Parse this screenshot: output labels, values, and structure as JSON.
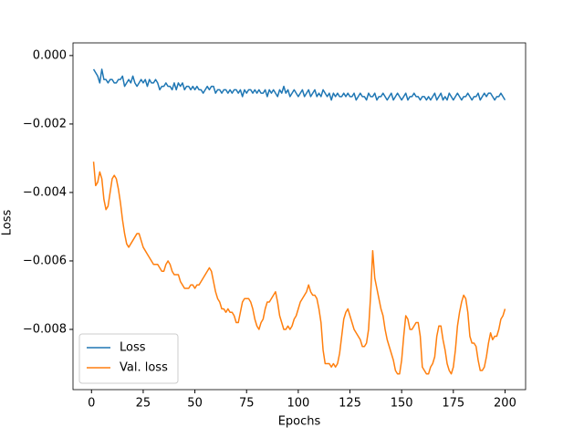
{
  "chart_data": {
    "type": "line",
    "xlabel": "Epochs",
    "ylabel": "Loss",
    "x": [
      1,
      2,
      3,
      4,
      5,
      6,
      7,
      8,
      9,
      10,
      11,
      12,
      13,
      14,
      15,
      16,
      17,
      18,
      19,
      20,
      21,
      22,
      23,
      24,
      25,
      26,
      27,
      28,
      29,
      30,
      31,
      32,
      33,
      34,
      35,
      36,
      37,
      38,
      39,
      40,
      41,
      42,
      43,
      44,
      45,
      46,
      47,
      48,
      49,
      50,
      51,
      52,
      53,
      54,
      55,
      56,
      57,
      58,
      59,
      60,
      61,
      62,
      63,
      64,
      65,
      66,
      67,
      68,
      69,
      70,
      71,
      72,
      73,
      74,
      75,
      76,
      77,
      78,
      79,
      80,
      81,
      82,
      83,
      84,
      85,
      86,
      87,
      88,
      89,
      90,
      91,
      92,
      93,
      94,
      95,
      96,
      97,
      98,
      99,
      100,
      101,
      102,
      103,
      104,
      105,
      106,
      107,
      108,
      109,
      110,
      111,
      112,
      113,
      114,
      115,
      116,
      117,
      118,
      119,
      120,
      121,
      122,
      123,
      124,
      125,
      126,
      127,
      128,
      129,
      130,
      131,
      132,
      133,
      134,
      135,
      136,
      137,
      138,
      139,
      140,
      141,
      142,
      143,
      144,
      145,
      146,
      147,
      148,
      149,
      150,
      151,
      152,
      153,
      154,
      155,
      156,
      157,
      158,
      159,
      160,
      161,
      162,
      163,
      164,
      165,
      166,
      167,
      168,
      169,
      170,
      171,
      172,
      173,
      174,
      175,
      176,
      177,
      178,
      179,
      180,
      181,
      182,
      183,
      184,
      185,
      186,
      187,
      188,
      189,
      190,
      191,
      192,
      193,
      194,
      195,
      196,
      197,
      198,
      199,
      200
    ],
    "series": [
      {
        "name": "Loss",
        "color": "#1f77b4",
        "values": [
          -0.0004,
          -0.0005,
          -0.0006,
          -0.0008,
          -0.0004,
          -0.0007,
          -0.0007,
          -0.0008,
          -0.0007,
          -0.0007,
          -0.0008,
          -0.0008,
          -0.0007,
          -0.0007,
          -0.0006,
          -0.0009,
          -0.0008,
          -0.0007,
          -0.0008,
          -0.0006,
          -0.0008,
          -0.0009,
          -0.0008,
          -0.0007,
          -0.0008,
          -0.0007,
          -0.0009,
          -0.0007,
          -0.0008,
          -0.0008,
          -0.0007,
          -0.0008,
          -0.001,
          -0.0009,
          -0.0009,
          -0.0008,
          -0.0009,
          -0.0009,
          -0.001,
          -0.0008,
          -0.001,
          -0.0008,
          -0.0009,
          -0.0008,
          -0.001,
          -0.0009,
          -0.0009,
          -0.001,
          -0.0009,
          -0.001,
          -0.0009,
          -0.001,
          -0.001,
          -0.0011,
          -0.001,
          -0.0009,
          -0.001,
          -0.0009,
          -0.0009,
          -0.0011,
          -0.001,
          -0.001,
          -0.0011,
          -0.001,
          -0.001,
          -0.0011,
          -0.001,
          -0.0011,
          -0.001,
          -0.001,
          -0.0011,
          -0.001,
          -0.0012,
          -0.001,
          -0.0011,
          -0.001,
          -0.001,
          -0.0011,
          -0.001,
          -0.0011,
          -0.001,
          -0.0011,
          -0.0011,
          -0.001,
          -0.0012,
          -0.001,
          -0.0011,
          -0.001,
          -0.0011,
          -0.0012,
          -0.001,
          -0.0011,
          -0.0009,
          -0.0011,
          -0.001,
          -0.0012,
          -0.0011,
          -0.001,
          -0.0011,
          -0.0012,
          -0.0011,
          -0.001,
          -0.0012,
          -0.0011,
          -0.001,
          -0.0012,
          -0.0011,
          -0.001,
          -0.0012,
          -0.0011,
          -0.0012,
          -0.001,
          -0.0011,
          -0.0012,
          -0.0011,
          -0.0013,
          -0.0011,
          -0.0012,
          -0.0011,
          -0.0012,
          -0.0012,
          -0.0011,
          -0.0012,
          -0.0011,
          -0.0012,
          -0.0012,
          -0.0011,
          -0.0013,
          -0.0012,
          -0.0011,
          -0.0012,
          -0.0012,
          -0.0013,
          -0.0011,
          -0.0012,
          -0.0012,
          -0.0011,
          -0.0013,
          -0.0012,
          -0.0012,
          -0.0011,
          -0.0012,
          -0.0013,
          -0.0012,
          -0.0011,
          -0.0013,
          -0.0012,
          -0.0011,
          -0.0012,
          -0.0013,
          -0.0012,
          -0.0011,
          -0.0013,
          -0.0012,
          -0.0012,
          -0.0011,
          -0.0012,
          -0.0012,
          -0.0013,
          -0.0012,
          -0.0012,
          -0.0013,
          -0.0012,
          -0.0013,
          -0.0012,
          -0.0011,
          -0.0013,
          -0.0012,
          -0.0011,
          -0.0013,
          -0.0012,
          -0.0013,
          -0.0011,
          -0.0012,
          -0.0013,
          -0.0012,
          -0.0011,
          -0.0012,
          -0.0013,
          -0.0012,
          -0.0012,
          -0.0011,
          -0.0012,
          -0.0013,
          -0.0012,
          -0.0012,
          -0.0011,
          -0.0013,
          -0.0012,
          -0.0011,
          -0.0012,
          -0.0011,
          -0.0011,
          -0.0012,
          -0.0013,
          -0.0012,
          -0.0012,
          -0.0011,
          -0.0012,
          -0.0013
        ]
      },
      {
        "name": "Val. loss",
        "color": "#ff7f0e",
        "values": [
          -0.0031,
          -0.0038,
          -0.0037,
          -0.0034,
          -0.0036,
          -0.0042,
          -0.0045,
          -0.0044,
          -0.004,
          -0.0036,
          -0.0035,
          -0.0036,
          -0.0039,
          -0.0043,
          -0.0048,
          -0.0052,
          -0.0055,
          -0.0056,
          -0.0055,
          -0.0054,
          -0.0053,
          -0.0052,
          -0.0052,
          -0.0054,
          -0.0056,
          -0.0057,
          -0.0058,
          -0.0059,
          -0.006,
          -0.0061,
          -0.0061,
          -0.0061,
          -0.0062,
          -0.0063,
          -0.0063,
          -0.0061,
          -0.006,
          -0.0061,
          -0.0063,
          -0.0064,
          -0.0064,
          -0.0064,
          -0.0066,
          -0.0067,
          -0.0068,
          -0.0068,
          -0.0068,
          -0.0067,
          -0.0067,
          -0.0068,
          -0.0067,
          -0.0067,
          -0.0066,
          -0.0065,
          -0.0064,
          -0.0063,
          -0.0062,
          -0.0063,
          -0.0066,
          -0.0069,
          -0.0071,
          -0.0072,
          -0.0074,
          -0.0074,
          -0.0075,
          -0.0074,
          -0.0075,
          -0.0075,
          -0.0076,
          -0.0078,
          -0.0078,
          -0.0075,
          -0.0072,
          -0.0071,
          -0.0071,
          -0.0071,
          -0.0072,
          -0.0074,
          -0.0077,
          -0.0079,
          -0.008,
          -0.0078,
          -0.0077,
          -0.0074,
          -0.0072,
          -0.0072,
          -0.0071,
          -0.007,
          -0.0069,
          -0.0072,
          -0.0076,
          -0.0078,
          -0.008,
          -0.008,
          -0.0079,
          -0.008,
          -0.0079,
          -0.0077,
          -0.0076,
          -0.0074,
          -0.0072,
          -0.0071,
          -0.007,
          -0.0069,
          -0.0067,
          -0.0069,
          -0.007,
          -0.007,
          -0.0071,
          -0.0074,
          -0.0078,
          -0.0086,
          -0.009,
          -0.009,
          -0.009,
          -0.0091,
          -0.009,
          -0.0091,
          -0.009,
          -0.0087,
          -0.0082,
          -0.0077,
          -0.0075,
          -0.0074,
          -0.0076,
          -0.0078,
          -0.008,
          -0.0081,
          -0.0082,
          -0.0083,
          -0.0085,
          -0.0085,
          -0.0084,
          -0.008,
          -0.007,
          -0.0057,
          -0.0065,
          -0.0068,
          -0.0071,
          -0.0074,
          -0.0076,
          -0.008,
          -0.0083,
          -0.0085,
          -0.0087,
          -0.0089,
          -0.0092,
          -0.0093,
          -0.0093,
          -0.0089,
          -0.0082,
          -0.0076,
          -0.0077,
          -0.008,
          -0.008,
          -0.0079,
          -0.0078,
          -0.0078,
          -0.0082,
          -0.0091,
          -0.0092,
          -0.0093,
          -0.0093,
          -0.0091,
          -0.009,
          -0.0088,
          -0.0082,
          -0.0079,
          -0.0079,
          -0.0083,
          -0.0086,
          -0.009,
          -0.0092,
          -0.0093,
          -0.0091,
          -0.0086,
          -0.0079,
          -0.0075,
          -0.0072,
          -0.007,
          -0.0071,
          -0.0075,
          -0.0082,
          -0.0084,
          -0.0084,
          -0.0085,
          -0.0089,
          -0.0092,
          -0.0092,
          -0.0091,
          -0.0088,
          -0.0084,
          -0.0081,
          -0.0083,
          -0.0082,
          -0.0082,
          -0.008,
          -0.0077,
          -0.0076,
          -0.0074
        ]
      }
    ],
    "xlim": [
      -8.95,
      209.95
    ],
    "xticks": [
      0,
      25,
      50,
      75,
      100,
      125,
      150,
      175,
      200
    ],
    "ylim": [
      -0.00976,
      0.00037
    ],
    "yticks": [
      {
        "value": 0,
        "label": "0.000"
      },
      {
        "value": -0.002,
        "label": "−0.002"
      },
      {
        "value": -0.004,
        "label": "−0.004"
      },
      {
        "value": -0.006,
        "label": "−0.006"
      },
      {
        "value": -0.008,
        "label": "−0.008"
      }
    ],
    "grid": false,
    "legend": "lower left"
  }
}
